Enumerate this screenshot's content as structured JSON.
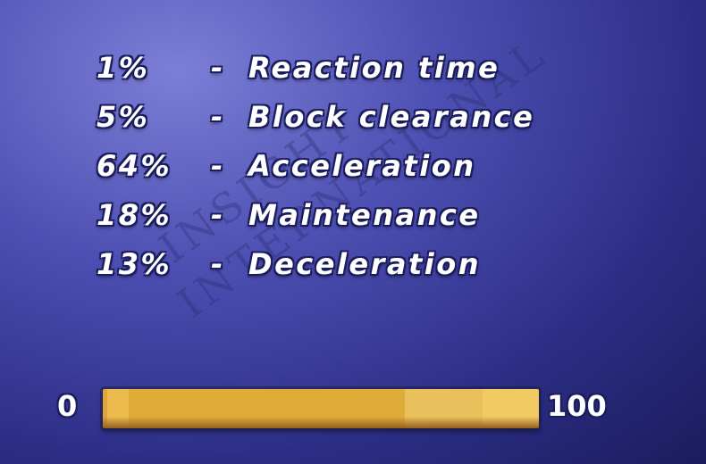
{
  "breakdown": [
    {
      "percent": "1%",
      "dash": "-",
      "label": "Reaction time",
      "value": 1,
      "color": "#e0a63a"
    },
    {
      "percent": "5%",
      "dash": "-",
      "label": "Block clearance",
      "value": 5,
      "color": "#ebbb4e"
    },
    {
      "percent": "64%",
      "dash": "-",
      "label": "Acceleration",
      "value": 64,
      "color": "#e0ac39"
    },
    {
      "percent": "18%",
      "dash": "-",
      "label": "Maintenance",
      "value": 18,
      "color": "#eac05c"
    },
    {
      "percent": "13%",
      "dash": "-",
      "label": "Deceleration",
      "value": 13,
      "color": "#f1ca62"
    }
  ],
  "scale": {
    "min_label": "0",
    "max_label": "100"
  },
  "watermark": {
    "line1": "INSIGHT",
    "line2": "INTERNATIONAL"
  },
  "colors": {
    "background": "#4d50b2",
    "text": "#ffffff",
    "outline": "#1b1d5e"
  }
}
